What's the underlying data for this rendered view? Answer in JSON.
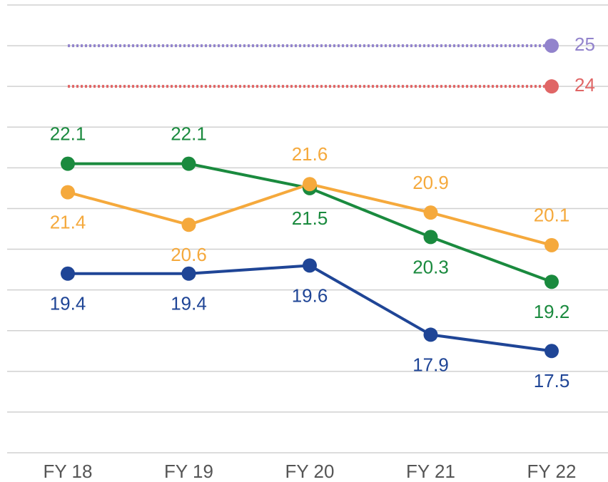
{
  "chart_data": {
    "type": "line",
    "categories": [
      "FY 18",
      "FY 19",
      "FY 20",
      "FY 21",
      "FY 22"
    ],
    "series": [
      {
        "color": "#1f4596",
        "values": [
          19.4,
          19.4,
          19.6,
          17.9,
          17.5
        ]
      },
      {
        "color": "#1a8a3e",
        "values": [
          22.1,
          22.1,
          21.5,
          20.3,
          19.2
        ]
      },
      {
        "color": "#f5a93c",
        "values": [
          21.4,
          20.6,
          21.6,
          20.9,
          20.1
        ]
      }
    ],
    "reference_lines": [
      {
        "value": 25,
        "color": "#9283cc"
      },
      {
        "value": 24,
        "color": "#e06666"
      }
    ],
    "ylim": [
      15,
      26
    ],
    "yticks": [
      15,
      16,
      17,
      18,
      19,
      20,
      21,
      22,
      23,
      24,
      25,
      26
    ],
    "grid": true
  }
}
